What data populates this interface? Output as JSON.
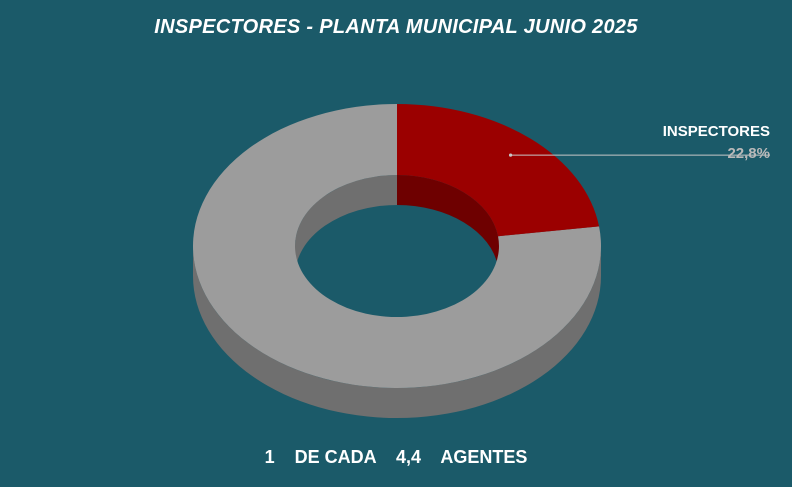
{
  "chart_data": {
    "type": "pie",
    "style": "3d-donut",
    "title": "INSPECTORES - PLANTA MUNICIPAL JUNIO 2025",
    "slices": [
      {
        "category": "INSPECTORES",
        "percent": 22.8,
        "label": "INSPECTORES",
        "value_label": "22,8%",
        "color": "#9b0000"
      },
      {
        "category": "",
        "percent": 77.2,
        "label": "",
        "value_label": "",
        "color": "#9c9c9c"
      }
    ],
    "legend": "none"
  },
  "footer": {
    "text": "1    DE CADA    4,4    AGENTES"
  },
  "colors": {
    "background": "#1b5a69",
    "highlight": "#9b0000",
    "highlight_side": "#6e0000",
    "rest": "#9c9c9c",
    "rest_side": "#6f6f6f",
    "callout_line": "#c8c8c8"
  }
}
